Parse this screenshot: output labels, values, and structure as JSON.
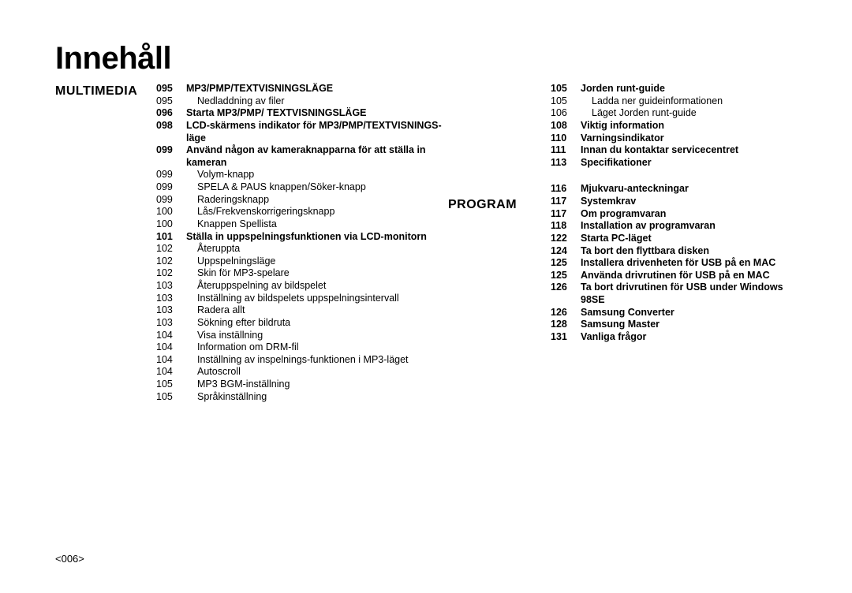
{
  "title": "Innehåll",
  "page_footer": "<006>",
  "sections": {
    "multimedia": {
      "label": "MULTIMEDIA",
      "items": [
        {
          "page": "095",
          "text": "MP3/PMP/TEXTVISNINGSLÄGE",
          "bold": true
        },
        {
          "page": "095",
          "text": "Nedladdning av filer",
          "indent": true
        },
        {
          "page": "096",
          "text": "Starta MP3/PMP/ TEXTVISNINGSLÄGE",
          "bold": true
        },
        {
          "page": "098",
          "text": "LCD-skärmens indikator för MP3/PMP/TEXTVISNINGS-läge",
          "bold": true
        },
        {
          "page": "099",
          "text": "Använd någon av kameraknapparna för att ställa in kameran",
          "bold": true
        },
        {
          "page": "099",
          "text": "Volym-knapp",
          "indent": true
        },
        {
          "page": "099",
          "text": "SPELA & PAUS knappen/Söker-knapp",
          "indent": true
        },
        {
          "page": "099",
          "text": "Raderingsknapp",
          "indent": true
        },
        {
          "page": "100",
          "text": "Lås/Frekvenskorrigeringsknapp",
          "indent": true
        },
        {
          "page": "100",
          "text": "Knappen Spellista",
          "indent": true
        },
        {
          "page": "101",
          "text": "Ställa in uppspelningsfunktionen via LCD-monitorn",
          "bold": true
        },
        {
          "page": "102",
          "text": "Återuppta",
          "indent": true
        },
        {
          "page": "102",
          "text": "Uppspelningsläge",
          "indent": true
        },
        {
          "page": "102",
          "text": "Skin för MP3-spelare",
          "indent": true
        },
        {
          "page": "103",
          "text": "Återuppspelning av bildspelet",
          "indent": true
        },
        {
          "page": "103",
          "text": "Inställning av bildspelets uppspelningsintervall",
          "indent": true
        },
        {
          "page": "103",
          "text": "Radera allt",
          "indent": true
        },
        {
          "page": "103",
          "text": "Sökning efter bildruta",
          "indent": true
        },
        {
          "page": "104",
          "text": "Visa inställning",
          "indent": true
        },
        {
          "page": "104",
          "text": "Information om DRM-fil",
          "indent": true
        },
        {
          "page": "104",
          "text": "Inställning av inspelnings-funktionen i MP3-läget",
          "indent": true
        },
        {
          "page": "104",
          "text": "Autoscroll",
          "indent": true
        },
        {
          "page": "105",
          "text": "MP3 BGM-inställning",
          "indent": true
        },
        {
          "page": "105",
          "text": "Språkinställning",
          "indent": true
        }
      ]
    },
    "right_top": {
      "items": [
        {
          "page": "105",
          "text": "Jorden runt-guide",
          "bold": true
        },
        {
          "page": "105",
          "text": "Ladda ner guideinformationen",
          "indent": true
        },
        {
          "page": "106",
          "text": "Läget Jorden runt-guide",
          "indent": true
        },
        {
          "page": "108",
          "text": "Viktig information",
          "bold": true
        },
        {
          "page": "110",
          "text": "Varningsindikator",
          "bold": true
        },
        {
          "page": "111",
          "text": "Innan du kontaktar servicecentret",
          "bold": true
        },
        {
          "page": "113",
          "text": "Specifikationer",
          "bold": true
        }
      ]
    },
    "program": {
      "label": "PROGRAM",
      "items": [
        {
          "page": "116",
          "text": "Mjukvaru-anteckningar",
          "bold": true
        },
        {
          "page": "117",
          "text": "Systemkrav",
          "bold": true
        },
        {
          "page": "117",
          "text": "Om programvaran",
          "bold": true
        },
        {
          "page": "118",
          "text": "Installation av programvaran",
          "bold": true
        },
        {
          "page": "122",
          "text": "Starta PC-läget",
          "bold": true
        },
        {
          "page": "124",
          "text": "Ta bort den flyttbara disken",
          "bold": true
        },
        {
          "page": "125",
          "text": "Installera drivenheten för USB på en MAC",
          "bold": true
        },
        {
          "page": "125",
          "text": "Använda drivrutinen för USB på en MAC",
          "bold": true
        },
        {
          "page": "126",
          "text": "Ta bort drivrutinen för USB under Windows 98SE",
          "bold": true
        },
        {
          "page": "126",
          "text": "Samsung Converter",
          "bold": true
        },
        {
          "page": "128",
          "text": "Samsung Master",
          "bold": true
        },
        {
          "page": "131",
          "text": "Vanliga frågor",
          "bold": true
        }
      ]
    }
  }
}
